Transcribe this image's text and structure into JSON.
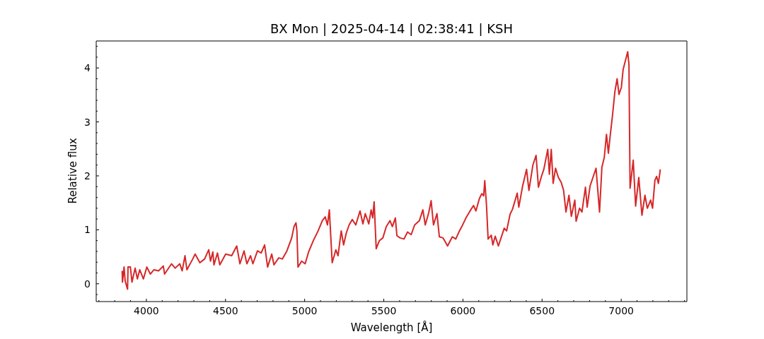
{
  "chart_data": {
    "type": "line",
    "title": "BX Mon | 2025-04-14 | 02:38:41 | KSH",
    "xlabel": "Wavelength [Å]",
    "ylabel": "Relative flux",
    "xlim": [
      3683,
      7415
    ],
    "ylim": [
      -0.33,
      4.5
    ],
    "xticks": [
      {
        "value": 3700,
        "label": null
      },
      {
        "value": 3800,
        "label": null
      },
      {
        "value": 3900,
        "label": null
      },
      4000,
      {
        "value": 4100,
        "label": null
      },
      {
        "value": 4200,
        "label": null
      },
      {
        "value": 4300,
        "label": null
      },
      {
        "value": 4400,
        "label": null
      },
      4500,
      {
        "value": 4600,
        "label": null
      },
      {
        "value": 4700,
        "label": null
      },
      {
        "value": 4800,
        "label": null
      },
      {
        "value": 4900,
        "label": null
      },
      5000,
      {
        "value": 5100,
        "label": null
      },
      {
        "value": 5200,
        "label": null
      },
      {
        "value": 5300,
        "label": null
      },
      {
        "value": 5400,
        "label": null
      },
      5500,
      {
        "value": 5600,
        "label": null
      },
      {
        "value": 5700,
        "label": null
      },
      {
        "value": 5800,
        "label": null
      },
      {
        "value": 5900,
        "label": null
      },
      6000,
      {
        "value": 6100,
        "label": null
      },
      {
        "value": 6200,
        "label": null
      },
      {
        "value": 6300,
        "label": null
      },
      {
        "value": 6400,
        "label": null
      },
      6500,
      {
        "value": 6600,
        "label": null
      },
      {
        "value": 6700,
        "label": null
      },
      {
        "value": 6800,
        "label": null
      },
      {
        "value": 6900,
        "label": null
      },
      7000,
      {
        "value": 7100,
        "label": null
      },
      {
        "value": 7200,
        "label": null
      },
      {
        "value": 7300,
        "label": null
      },
      {
        "value": 7400,
        "label": null
      }
    ],
    "yticks": [
      {
        "value": -0.2,
        "label": null
      },
      0,
      {
        "value": 0.2,
        "label": null
      },
      {
        "value": 0.4,
        "label": null
      },
      {
        "value": 0.6,
        "label": null
      },
      {
        "value": 0.8,
        "label": null
      },
      1,
      {
        "value": 1.2,
        "label": null
      },
      {
        "value": 1.4,
        "label": null
      },
      {
        "value": 1.6,
        "label": null
      },
      {
        "value": 1.8,
        "label": null
      },
      2,
      {
        "value": 2.2,
        "label": null
      },
      {
        "value": 2.4,
        "label": null
      },
      {
        "value": 2.6,
        "label": null
      },
      {
        "value": 2.8,
        "label": null
      },
      3,
      {
        "value": 3.2,
        "label": null
      },
      {
        "value": 3.4,
        "label": null
      },
      {
        "value": 3.6,
        "label": null
      },
      {
        "value": 3.8,
        "label": null
      },
      4,
      {
        "value": 4.2,
        "label": null
      },
      {
        "value": 4.4,
        "label": null
      }
    ],
    "series": [
      {
        "color": "#d62728",
        "x": [
          3847,
          3849,
          3859,
          3866,
          3881,
          3884,
          3899,
          3909,
          3929,
          3943,
          3958,
          3981,
          4003,
          4025,
          4048,
          4077,
          4107,
          4115,
          4159,
          4182,
          4211,
          4226,
          4244,
          4256,
          4293,
          4308,
          4338,
          4368,
          4394,
          4405,
          4420,
          4427,
          4449,
          4464,
          4501,
          4539,
          4571,
          4591,
          4617,
          4635,
          4658,
          4673,
          4702,
          4725,
          4747,
          4766,
          4792,
          4806,
          4836,
          4859,
          4888,
          4918,
          4933,
          4945,
          4951,
          4958,
          4981,
          5003,
          5025,
          5055,
          5085,
          5112,
          5130,
          5144,
          5156,
          5174,
          5197,
          5211,
          5231,
          5246,
          5263,
          5281,
          5301,
          5323,
          5350,
          5368,
          5383,
          5405,
          5420,
          5430,
          5439,
          5452,
          5472,
          5494,
          5516,
          5539,
          5554,
          5573,
          5583,
          5603,
          5628,
          5650,
          5673,
          5695,
          5725,
          5747,
          5762,
          5784,
          5799,
          5814,
          5836,
          5851,
          5874,
          5903,
          5933,
          5955,
          5978,
          5993,
          6019,
          6045,
          6067,
          6082,
          6104,
          6119,
          6131,
          6138,
          6149,
          6159,
          6179,
          6189,
          6204,
          6224,
          6261,
          6276,
          6298,
          6313,
          6343,
          6353,
          6377,
          6402,
          6417,
          6442,
          6462,
          6477,
          6496,
          6511,
          6536,
          6546,
          6558,
          6570,
          6585,
          6603,
          6621,
          6636,
          6651,
          6670,
          6685,
          6707,
          6715,
          6737,
          6752,
          6774,
          6785,
          6803,
          6841,
          6863,
          6878,
          6893,
          6907,
          6919,
          6930,
          6945,
          6960,
          6974,
          6986,
          7001,
          7012,
          7027,
          7041,
          7049,
          7056,
          7076,
          7091,
          7111,
          7131,
          7150,
          7165,
          7186,
          7198,
          7213,
          7224,
          7235,
          7247
        ],
        "values": [
          0.24,
          0.03,
          0.31,
          0.05,
          -0.1,
          0.31,
          0.31,
          0.03,
          0.29,
          0.09,
          0.26,
          0.09,
          0.31,
          0.18,
          0.26,
          0.24,
          0.33,
          0.18,
          0.37,
          0.29,
          0.37,
          0.24,
          0.52,
          0.26,
          0.46,
          0.55,
          0.39,
          0.46,
          0.63,
          0.42,
          0.59,
          0.35,
          0.57,
          0.35,
          0.55,
          0.52,
          0.7,
          0.37,
          0.61,
          0.37,
          0.52,
          0.37,
          0.61,
          0.57,
          0.72,
          0.31,
          0.55,
          0.35,
          0.48,
          0.46,
          0.61,
          0.85,
          1.06,
          1.13,
          0.98,
          0.31,
          0.42,
          0.37,
          0.59,
          0.8,
          0.98,
          1.17,
          1.24,
          1.09,
          1.37,
          0.39,
          0.63,
          0.52,
          0.98,
          0.72,
          0.94,
          1.09,
          1.19,
          1.09,
          1.35,
          1.11,
          1.3,
          1.11,
          1.37,
          1.22,
          1.52,
          0.65,
          0.8,
          0.85,
          1.06,
          1.17,
          1.06,
          1.22,
          0.89,
          0.85,
          0.83,
          0.96,
          0.91,
          1.09,
          1.17,
          1.37,
          1.09,
          1.32,
          1.54,
          1.09,
          1.3,
          0.87,
          0.85,
          0.7,
          0.87,
          0.83,
          0.98,
          1.06,
          1.22,
          1.35,
          1.45,
          1.35,
          1.58,
          1.67,
          1.63,
          1.91,
          1.45,
          0.83,
          0.9,
          0.72,
          0.88,
          0.7,
          1.03,
          0.98,
          1.29,
          1.38,
          1.68,
          1.42,
          1.81,
          2.12,
          1.73,
          2.2,
          2.38,
          1.79,
          1.99,
          2.12,
          2.49,
          2.03,
          2.49,
          1.86,
          2.14,
          1.97,
          1.88,
          1.73,
          1.33,
          1.64,
          1.25,
          1.55,
          1.16,
          1.4,
          1.33,
          1.79,
          1.42,
          1.81,
          2.14,
          1.33,
          2.16,
          2.34,
          2.77,
          2.42,
          2.73,
          3.12,
          3.56,
          3.8,
          3.51,
          3.64,
          3.97,
          4.14,
          4.3,
          4.06,
          1.77,
          2.29,
          1.44,
          1.97,
          1.27,
          1.64,
          1.4,
          1.55,
          1.4,
          1.92,
          1.99,
          1.86,
          2.12
        ]
      }
    ]
  }
}
